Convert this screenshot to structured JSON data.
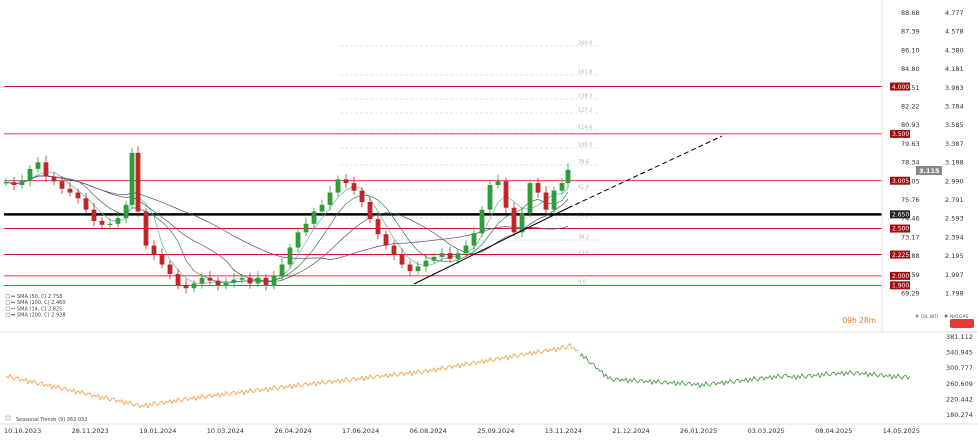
{
  "chart_data": {
    "type": "candlestick",
    "main_panel": {
      "right_axis_values": [
        "88.68",
        "87.39",
        "86.10",
        "84.80",
        "83.51",
        "82.22",
        "80.93",
        "79.63",
        "78.34",
        "77.05",
        "75.76",
        "74.46",
        "73.17",
        "71.88",
        "70.59",
        "69.29"
      ],
      "right_axis_values_2": [
        "4.777",
        "4.578",
        "4.380",
        "4.181",
        "3.983",
        "3.784",
        "3.585",
        "3.387",
        "3.188",
        "2.990",
        "2.791",
        "2.593",
        "2.394",
        "2.195",
        "1.997",
        "1.798"
      ],
      "last_price_label": "3.115",
      "levels": [
        {
          "label": "4.000",
          "value": 4.0,
          "color": "#c0000a"
        },
        {
          "label": "3.500",
          "value": 3.5,
          "color": "#c0000a"
        },
        {
          "label": "3.005",
          "value": 3.005,
          "color": "#c0000a"
        },
        {
          "label": "2.650",
          "value": 2.65,
          "color": "#000000",
          "thick": true
        },
        {
          "label": "2.500",
          "value": 2.5,
          "color": "#c0000a"
        },
        {
          "label": "2.225",
          "value": 2.225,
          "color": "#c0000a"
        },
        {
          "label": "2.000",
          "value": 2.0,
          "color": "#c0000a"
        },
        {
          "label": "1.900",
          "value": 1.9,
          "color": "#c0000a"
        }
      ],
      "fib_labels": [
        "200.0",
        "161.8",
        "138.2",
        "127.2",
        "114.6",
        "100.0",
        "78.6",
        "61.8",
        "50.0",
        "38.2",
        "23.6",
        "0.0"
      ],
      "legend": [
        {
          "text": "SMA (50, C) 2.758",
          "color": "#2e7d4f"
        },
        {
          "text": "SMA (100, C) 2.460",
          "color": "#555555"
        },
        {
          "text": "SMA (14, C) 2.825",
          "color": "#5fb3a8"
        },
        {
          "text": "SMA (200, C) 2.928",
          "color": "#4b3f8f"
        }
      ],
      "countdown": "09h 28m",
      "tags": [
        "OIL.WTI",
        "NATGAS"
      ]
    },
    "lower_panel": {
      "legend": "Seasonal Trends (9) 362.032",
      "axis_values": [
        "381.112",
        "340.945",
        "300.777",
        "260.609",
        "220.442",
        "180.274"
      ]
    },
    "x_labels": [
      "10.10.2023",
      "28.11.2023",
      "19.01.2024",
      "10.03.2024",
      "26.04.2024",
      "17.06.2024",
      "06.08.2024",
      "25.09.2024",
      "13.11.2024",
      "21.12.2024",
      "26.01.2025",
      "03.03.2025",
      "08.04.2025",
      "14.05.2025"
    ]
  }
}
